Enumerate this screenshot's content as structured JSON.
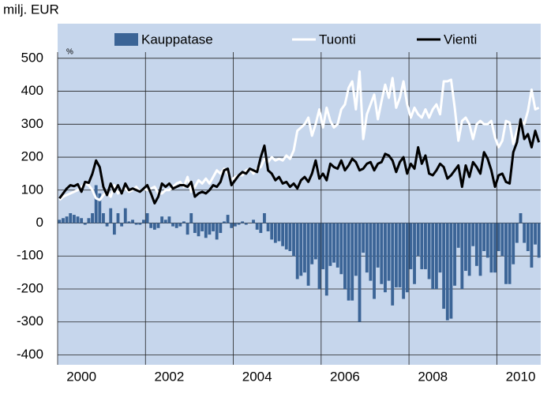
{
  "chart_data": {
    "type": "combo",
    "y_label": "milj. EUR",
    "annotation": "%",
    "categories": [
      null,
      null,
      null,
      null,
      null,
      null,
      "2000",
      null,
      null,
      null,
      null,
      null,
      null,
      null,
      null,
      null,
      null,
      null,
      null,
      null,
      null,
      null,
      null,
      null,
      null,
      null,
      null,
      null,
      null,
      null,
      "2002",
      null,
      null,
      null,
      null,
      null,
      null,
      null,
      null,
      null,
      null,
      null,
      null,
      null,
      null,
      null,
      null,
      null,
      null,
      null,
      null,
      null,
      null,
      null,
      "2004",
      null,
      null,
      null,
      null,
      null,
      null,
      null,
      null,
      null,
      null,
      null,
      null,
      null,
      null,
      null,
      null,
      null,
      null,
      null,
      null,
      null,
      null,
      null,
      "2006",
      null,
      null,
      null,
      null,
      null,
      null,
      null,
      null,
      null,
      null,
      null,
      null,
      null,
      null,
      null,
      null,
      null,
      null,
      null,
      null,
      null,
      null,
      null,
      "2008",
      null,
      null,
      null,
      null,
      null,
      null,
      null,
      null,
      null,
      null,
      null,
      null,
      null,
      null,
      null,
      null,
      null,
      null,
      null,
      null,
      null,
      null,
      null,
      "2010",
      null,
      null,
      null,
      null,
      null
    ],
    "series": [
      {
        "name": "Kauppatase",
        "type": "bar",
        "color": "#3b6496",
        "values": [
          10,
          15,
          20,
          30,
          25,
          20,
          15,
          -5,
          15,
          30,
          115,
          90,
          30,
          -10,
          45,
          -35,
          30,
          -10,
          45,
          5,
          10,
          -5,
          -5,
          10,
          30,
          -15,
          -20,
          -15,
          20,
          10,
          20,
          -10,
          -15,
          -10,
          5,
          -35,
          30,
          -30,
          -40,
          -25,
          -45,
          -35,
          -25,
          -50,
          -30,
          5,
          25,
          -15,
          -10,
          -5,
          5,
          -5,
          0,
          10,
          -20,
          -30,
          30,
          -25,
          -50,
          -60,
          -55,
          -70,
          -80,
          -85,
          -100,
          -170,
          -160,
          -150,
          -190,
          -125,
          -110,
          -200,
          -140,
          -220,
          -130,
          -120,
          -135,
          -155,
          -200,
          -235,
          -235,
          -160,
          -300,
          -90,
          -150,
          -175,
          -230,
          -135,
          -185,
          -210,
          -175,
          -250,
          -195,
          -195,
          -230,
          -210,
          -140,
          -185,
          -100,
          -140,
          -140,
          -170,
          -200,
          -200,
          -150,
          -260,
          -295,
          -290,
          -190,
          -75,
          -200,
          -145,
          -160,
          -70,
          -130,
          -160,
          -85,
          -105,
          -150,
          -150,
          -85,
          -100,
          -185,
          -185,
          -125,
          -60,
          30,
          -60,
          -85,
          -135,
          -65,
          -105
        ]
      },
      {
        "name": "Tuonti",
        "type": "line",
        "color": "#ffffff",
        "values": [
          70,
          80,
          85,
          90,
          95,
          100,
          110,
          120,
          115,
          100,
          75,
          70,
          85,
          95,
          80,
          115,
          90,
          100,
          105,
          95,
          100,
          110,
          95,
          105,
          100,
          105,
          110,
          90,
          90,
          100,
          100,
          110,
          120,
          125,
          110,
          140,
          95,
          110,
          130,
          120,
          135,
          120,
          140,
          160,
          150,
          165,
          150,
          130,
          140,
          145,
          145,
          160,
          165,
          150,
          165,
          170,
          195,
          185,
          200,
          190,
          195,
          190,
          205,
          195,
          220,
          280,
          290,
          300,
          320,
          265,
          300,
          345,
          290,
          350,
          310,
          290,
          300,
          345,
          360,
          410,
          430,
          345,
          460,
          255,
          330,
          360,
          390,
          315,
          370,
          420,
          380,
          440,
          350,
          380,
          430,
          360,
          320,
          350,
          330,
          320,
          345,
          320,
          345,
          360,
          330,
          430,
          430,
          435,
          350,
          250,
          310,
          320,
          300,
          255,
          300,
          310,
          300,
          300,
          310,
          260,
          230,
          250,
          310,
          305,
          240,
          280,
          310,
          300,
          340,
          405,
          345,
          350
        ]
      },
      {
        "name": "Vienti",
        "type": "line",
        "color": "#000000",
        "values": [
          75,
          90,
          105,
          115,
          112,
          118,
          95,
          125,
          122,
          150,
          190,
          170,
          110,
          85,
          120,
          95,
          115,
          90,
          120,
          100,
          105,
          100,
          95,
          105,
          115,
          90,
          60,
          80,
          120,
          110,
          120,
          105,
          110,
          115,
          115,
          110,
          125,
          80,
          90,
          95,
          90,
          100,
          115,
          110,
          125,
          160,
          165,
          115,
          130,
          145,
          155,
          150,
          165,
          160,
          155,
          200,
          235,
          160,
          150,
          130,
          140,
          120,
          125,
          110,
          120,
          105,
          130,
          140,
          125,
          150,
          190,
          135,
          150,
          130,
          180,
          170,
          165,
          190,
          160,
          175,
          195,
          185,
          160,
          165,
          180,
          185,
          160,
          180,
          185,
          210,
          205,
          190,
          155,
          185,
          200,
          150,
          180,
          165,
          230,
          180,
          205,
          150,
          145,
          160,
          180,
          170,
          135,
          145,
          160,
          175,
          110,
          175,
          140,
          185,
          170,
          150,
          215,
          195,
          160,
          110,
          145,
          150,
          125,
          120,
          215,
          245,
          315,
          255,
          270,
          230,
          280,
          245
        ]
      }
    ],
    "ylim": [
      -430,
      605
    ],
    "yticks": [
      -400,
      -300,
      -200,
      -100,
      0,
      100,
      200,
      300,
      400,
      500
    ],
    "grid": true
  }
}
